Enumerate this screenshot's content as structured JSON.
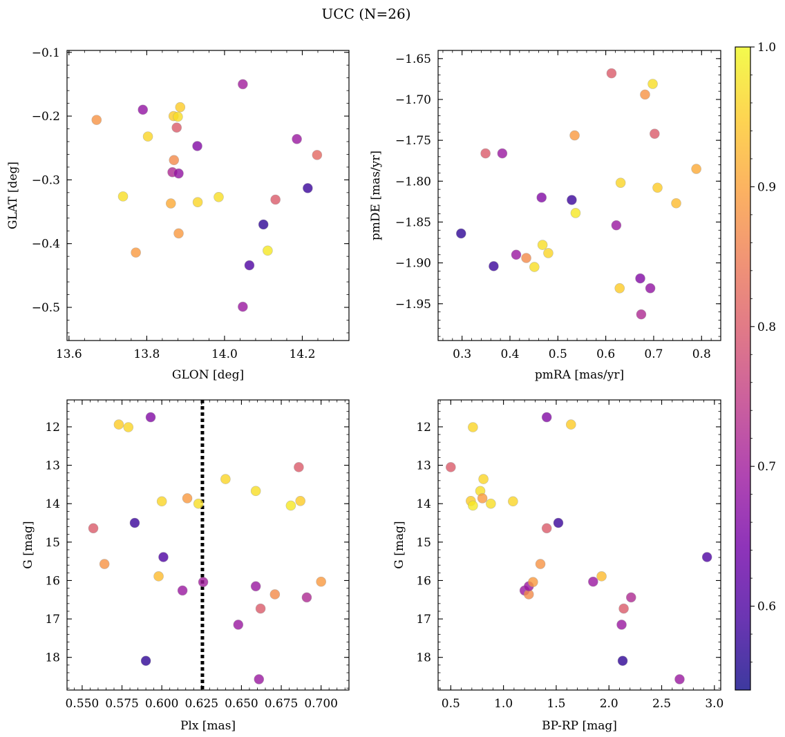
{
  "figure": {
    "title": "UCC (N=26)",
    "colorbar": {
      "min": 0.54,
      "max": 1.0,
      "ticks": [
        0.6,
        0.7,
        0.8,
        0.9,
        1.0
      ],
      "tick_labels": [
        "0.6",
        "0.7",
        "0.8",
        "0.9",
        "1.0"
      ],
      "colormap": "plasma"
    }
  },
  "chart_data": [
    {
      "type": "scatter",
      "panel": "top-left",
      "xlabel": "GLON [deg]",
      "ylabel": "GLAT [deg]",
      "xlim": [
        13.595,
        14.32
      ],
      "ylim": [
        -0.552,
        -0.097
      ],
      "y_inverted": false,
      "xticks": [
        13.6,
        13.8,
        14.0,
        14.2
      ],
      "xtick_labels": [
        "13.6",
        "13.8",
        "14.0",
        "14.2"
      ],
      "yticks": [
        -0.1,
        -0.2,
        -0.3,
        -0.4,
        -0.5
      ],
      "ytick_labels": [
        "−0.1",
        "−0.2",
        "−0.3",
        "−0.4",
        "−0.5"
      ],
      "points": [
        {
          "x": 13.671,
          "y": -0.206,
          "c": 0.88
        },
        {
          "x": 13.739,
          "y": -0.326,
          "c": 0.97
        },
        {
          "x": 13.772,
          "y": -0.414,
          "c": 0.89
        },
        {
          "x": 13.79,
          "y": -0.19,
          "c": 0.68
        },
        {
          "x": 13.803,
          "y": -0.232,
          "c": 0.96
        },
        {
          "x": 13.862,
          "y": -0.337,
          "c": 0.91
        },
        {
          "x": 13.866,
          "y": -0.288,
          "c": 0.72
        },
        {
          "x": 13.869,
          "y": -0.2,
          "c": 0.95
        },
        {
          "x": 13.87,
          "y": -0.269,
          "c": 0.87
        },
        {
          "x": 13.877,
          "y": -0.218,
          "c": 0.8
        },
        {
          "x": 13.88,
          "y": -0.201,
          "c": 0.97
        },
        {
          "x": 13.882,
          "y": -0.29,
          "c": 0.68
        },
        {
          "x": 13.882,
          "y": -0.384,
          "c": 0.89
        },
        {
          "x": 13.886,
          "y": -0.186,
          "c": 0.95
        },
        {
          "x": 13.93,
          "y": -0.247,
          "c": 0.66
        },
        {
          "x": 13.931,
          "y": -0.335,
          "c": 0.96
        },
        {
          "x": 13.985,
          "y": -0.327,
          "c": 0.97
        },
        {
          "x": 14.047,
          "y": -0.15,
          "c": 0.7
        },
        {
          "x": 14.047,
          "y": -0.499,
          "c": 0.69
        },
        {
          "x": 14.064,
          "y": -0.434,
          "c": 0.6
        },
        {
          "x": 14.1,
          "y": -0.37,
          "c": 0.57
        },
        {
          "x": 14.111,
          "y": -0.411,
          "c": 0.98
        },
        {
          "x": 14.131,
          "y": -0.331,
          "c": 0.8
        },
        {
          "x": 14.186,
          "y": -0.236,
          "c": 0.69
        },
        {
          "x": 14.214,
          "y": -0.313,
          "c": 0.58
        },
        {
          "x": 14.238,
          "y": -0.261,
          "c": 0.82
        }
      ]
    },
    {
      "type": "scatter",
      "panel": "top-right",
      "xlabel": "pmRA [mas/yr]",
      "ylabel": "pmDE [mas/yr]",
      "xlim": [
        0.25,
        0.84
      ],
      "ylim": [
        -1.995,
        -1.64
      ],
      "y_inverted": false,
      "xticks": [
        0.3,
        0.4,
        0.5,
        0.6,
        0.7,
        0.8
      ],
      "xtick_labels": [
        "0.3",
        "0.4",
        "0.5",
        "0.6",
        "0.7",
        "0.8"
      ],
      "yticks": [
        -1.65,
        -1.7,
        -1.75,
        -1.8,
        -1.85,
        -1.9,
        -1.95
      ],
      "ytick_labels": [
        "−1.65",
        "−1.70",
        "−1.75",
        "−1.80",
        "−1.85",
        "−1.90",
        "−1.95"
      ],
      "points": [
        {
          "x": 0.298,
          "y": -1.864,
          "c": 0.57
        },
        {
          "x": 0.349,
          "y": -1.766,
          "c": 0.8
        },
        {
          "x": 0.366,
          "y": -1.904,
          "c": 0.58
        },
        {
          "x": 0.384,
          "y": -1.766,
          "c": 0.69
        },
        {
          "x": 0.413,
          "y": -1.89,
          "c": 0.69
        },
        {
          "x": 0.434,
          "y": -1.894,
          "c": 0.87
        },
        {
          "x": 0.451,
          "y": -1.905,
          "c": 0.97
        },
        {
          "x": 0.466,
          "y": -1.82,
          "c": 0.66
        },
        {
          "x": 0.468,
          "y": -1.878,
          "c": 0.97
        },
        {
          "x": 0.48,
          "y": -1.888,
          "c": 0.96
        },
        {
          "x": 0.529,
          "y": -1.823,
          "c": 0.58
        },
        {
          "x": 0.535,
          "y": -1.744,
          "c": 0.89
        },
        {
          "x": 0.537,
          "y": -1.839,
          "c": 0.98
        },
        {
          "x": 0.612,
          "y": -1.668,
          "c": 0.8
        },
        {
          "x": 0.622,
          "y": -1.854,
          "c": 0.69
        },
        {
          "x": 0.629,
          "y": -1.931,
          "c": 0.95
        },
        {
          "x": 0.631,
          "y": -1.802,
          "c": 0.96
        },
        {
          "x": 0.672,
          "y": -1.919,
          "c": 0.66
        },
        {
          "x": 0.674,
          "y": -1.963,
          "c": 0.72
        },
        {
          "x": 0.682,
          "y": -1.694,
          "c": 0.88
        },
        {
          "x": 0.693,
          "y": -1.931,
          "c": 0.68
        },
        {
          "x": 0.698,
          "y": -1.681,
          "c": 0.97
        },
        {
          "x": 0.702,
          "y": -1.742,
          "c": 0.8
        },
        {
          "x": 0.708,
          "y": -1.808,
          "c": 0.95
        },
        {
          "x": 0.747,
          "y": -1.827,
          "c": 0.93
        },
        {
          "x": 0.789,
          "y": -1.785,
          "c": 0.91
        }
      ]
    },
    {
      "type": "scatter",
      "panel": "bottom-left",
      "xlabel": "Plx [mas]",
      "ylabel": "G [mag]",
      "xlim": [
        0.5405,
        0.7175
      ],
      "ylim": [
        18.85,
        11.3
      ],
      "y_inverted": true,
      "xticks": [
        0.55,
        0.575,
        0.6,
        0.625,
        0.65,
        0.675,
        0.7
      ],
      "xtick_labels": [
        "0.550",
        "0.575",
        "0.600",
        "0.625",
        "0.650",
        "0.675",
        "0.700"
      ],
      "yticks": [
        12,
        13,
        14,
        15,
        16,
        17,
        18
      ],
      "ytick_labels": [
        "12",
        "13",
        "14",
        "15",
        "16",
        "17",
        "18"
      ],
      "vline": 0.6255,
      "points": [
        {
          "x": 0.557,
          "y": 14.64,
          "c": 0.8
        },
        {
          "x": 0.564,
          "y": 15.57,
          "c": 0.88
        },
        {
          "x": 0.573,
          "y": 11.94,
          "c": 0.95
        },
        {
          "x": 0.579,
          "y": 12.01,
          "c": 0.96
        },
        {
          "x": 0.583,
          "y": 14.5,
          "c": 0.58
        },
        {
          "x": 0.59,
          "y": 18.09,
          "c": 0.57
        },
        {
          "x": 0.593,
          "y": 11.75,
          "c": 0.66
        },
        {
          "x": 0.598,
          "y": 15.89,
          "c": 0.93
        },
        {
          "x": 0.6,
          "y": 13.94,
          "c": 0.96
        },
        {
          "x": 0.601,
          "y": 15.39,
          "c": 0.6
        },
        {
          "x": 0.613,
          "y": 16.26,
          "c": 0.69
        },
        {
          "x": 0.616,
          "y": 13.86,
          "c": 0.89
        },
        {
          "x": 0.623,
          "y": 14.0,
          "c": 0.97
        },
        {
          "x": 0.626,
          "y": 16.04,
          "c": 0.7
        },
        {
          "x": 0.64,
          "y": 13.36,
          "c": 0.96
        },
        {
          "x": 0.648,
          "y": 17.15,
          "c": 0.69
        },
        {
          "x": 0.659,
          "y": 13.67,
          "c": 0.97
        },
        {
          "x": 0.659,
          "y": 16.15,
          "c": 0.69
        },
        {
          "x": 0.661,
          "y": 18.57,
          "c": 0.69
        },
        {
          "x": 0.662,
          "y": 16.73,
          "c": 0.8
        },
        {
          "x": 0.671,
          "y": 16.36,
          "c": 0.87
        },
        {
          "x": 0.681,
          "y": 14.05,
          "c": 0.98
        },
        {
          "x": 0.686,
          "y": 13.05,
          "c": 0.8
        },
        {
          "x": 0.687,
          "y": 13.93,
          "c": 0.95
        },
        {
          "x": 0.691,
          "y": 16.44,
          "c": 0.72
        },
        {
          "x": 0.7,
          "y": 16.03,
          "c": 0.89
        }
      ]
    },
    {
      "type": "scatter",
      "panel": "bottom-right",
      "xlabel": "BP-RP [mag]",
      "ylabel": "G [mag]",
      "xlim": [
        0.38,
        3.06
      ],
      "ylim": [
        18.85,
        11.3
      ],
      "y_inverted": true,
      "xticks": [
        0.5,
        1.0,
        1.5,
        2.0,
        2.5,
        3.0
      ],
      "xtick_labels": [
        "0.5",
        "1.0",
        "1.5",
        "2.0",
        "2.5",
        "3.0"
      ],
      "yticks": [
        12,
        13,
        14,
        15,
        16,
        17,
        18
      ],
      "ytick_labels": [
        "12",
        "13",
        "14",
        "15",
        "16",
        "17",
        "18"
      ],
      "points": [
        {
          "x": 0.5,
          "y": 13.05,
          "c": 0.8
        },
        {
          "x": 0.69,
          "y": 13.93,
          "c": 0.95
        },
        {
          "x": 0.71,
          "y": 14.05,
          "c": 0.98
        },
        {
          "x": 0.71,
          "y": 12.01,
          "c": 0.96
        },
        {
          "x": 0.78,
          "y": 13.67,
          "c": 0.97
        },
        {
          "x": 0.8,
          "y": 13.86,
          "c": 0.89
        },
        {
          "x": 0.81,
          "y": 13.36,
          "c": 0.96
        },
        {
          "x": 0.88,
          "y": 14.0,
          "c": 0.97
        },
        {
          "x": 1.09,
          "y": 13.94,
          "c": 0.96
        },
        {
          "x": 1.2,
          "y": 16.26,
          "c": 0.69
        },
        {
          "x": 1.24,
          "y": 16.36,
          "c": 0.87
        },
        {
          "x": 1.24,
          "y": 16.15,
          "c": 0.69
        },
        {
          "x": 1.28,
          "y": 16.04,
          "c": 0.89
        },
        {
          "x": 1.35,
          "y": 15.57,
          "c": 0.88
        },
        {
          "x": 1.41,
          "y": 14.64,
          "c": 0.8
        },
        {
          "x": 1.41,
          "y": 11.75,
          "c": 0.66
        },
        {
          "x": 1.52,
          "y": 14.5,
          "c": 0.58
        },
        {
          "x": 1.64,
          "y": 11.94,
          "c": 0.95
        },
        {
          "x": 1.85,
          "y": 16.03,
          "c": 0.69
        },
        {
          "x": 1.93,
          "y": 15.89,
          "c": 0.93
        },
        {
          "x": 2.12,
          "y": 17.15,
          "c": 0.69
        },
        {
          "x": 2.13,
          "y": 18.09,
          "c": 0.57
        },
        {
          "x": 2.14,
          "y": 16.73,
          "c": 0.8
        },
        {
          "x": 2.21,
          "y": 16.44,
          "c": 0.72
        },
        {
          "x": 2.67,
          "y": 18.57,
          "c": 0.69
        },
        {
          "x": 2.93,
          "y": 15.39,
          "c": 0.6
        }
      ]
    }
  ]
}
